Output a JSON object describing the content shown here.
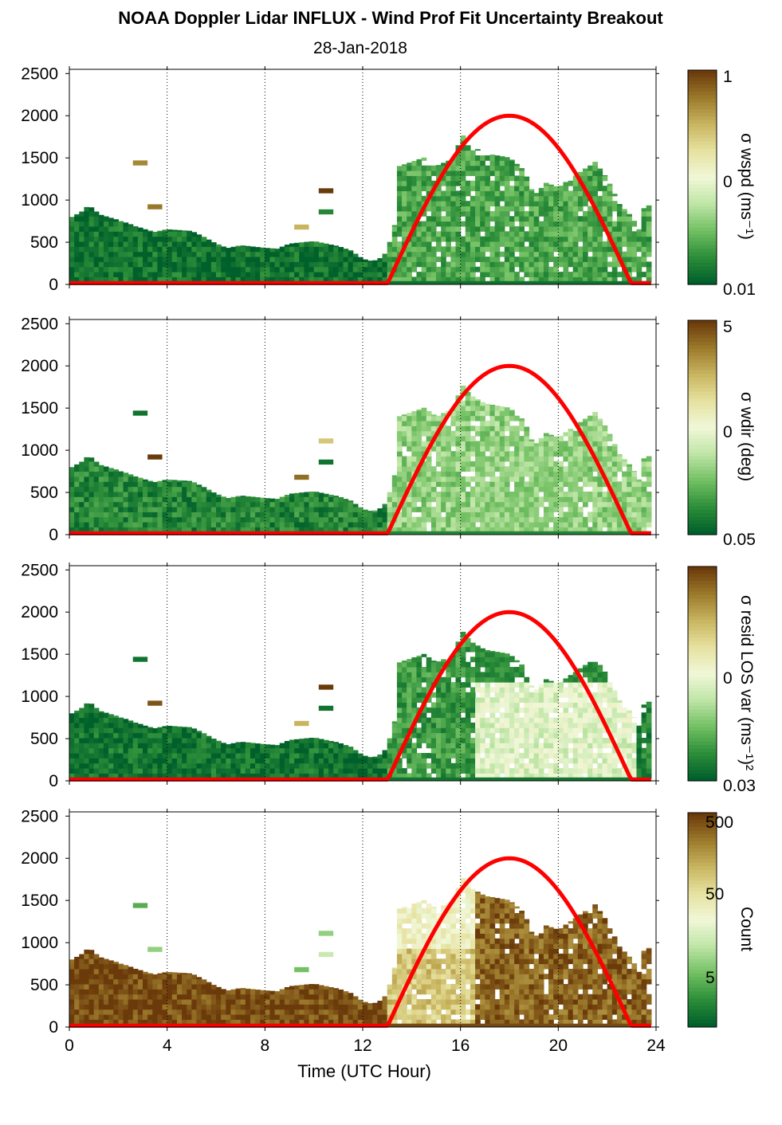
{
  "title": "NOAA Doppler Lidar INFLUX - Wind Prof Fit Uncertainty Breakout",
  "subtitle": "28-Jan-2018",
  "colors": {
    "colormap": [
      "#00602b",
      "#2e8f3a",
      "#74c164",
      "#c0e6a7",
      "#f1f7d8",
      "#e6e2a0",
      "#c9b560",
      "#9c7b2c",
      "#6b3a0a"
    ],
    "sun_curve": "#ff0000",
    "grid": "#000000"
  },
  "chart_data": [
    {
      "type": "heatmap",
      "panel": "wspd",
      "colorbar_label": "σ wspd (ms⁻¹)",
      "colorbar_ticks": [
        "1",
        "0",
        "0.01"
      ],
      "xlim": [
        0,
        24
      ],
      "ylim": [
        0,
        2550
      ],
      "y_ticks": [
        0,
        500,
        1000,
        1500,
        2000,
        2500
      ],
      "x_ticks": [
        0,
        4,
        8,
        12,
        16,
        20,
        24
      ],
      "grid": "vertical dotted",
      "layer_top": [
        [
          0,
          780
        ],
        [
          0.5,
          860
        ],
        [
          0.8,
          940
        ],
        [
          1.0,
          880
        ],
        [
          1.3,
          820
        ],
        [
          2.0,
          760
        ],
        [
          2.6,
          700
        ],
        [
          3.2,
          640
        ],
        [
          3.5,
          620
        ],
        [
          4.0,
          650
        ],
        [
          5.0,
          630
        ],
        [
          5.5,
          560
        ],
        [
          6.0,
          480
        ],
        [
          6.5,
          430
        ],
        [
          7.0,
          460
        ],
        [
          8.0,
          430
        ],
        [
          8.5,
          420
        ],
        [
          9.0,
          480
        ],
        [
          10.0,
          510
        ],
        [
          11.0,
          450
        ],
        [
          11.5,
          400
        ],
        [
          12.0,
          300
        ],
        [
          12.4,
          270
        ],
        [
          12.8,
          320
        ],
        [
          13.0,
          400
        ],
        [
          13.3,
          700
        ],
        [
          13.5,
          1400
        ],
        [
          14.5,
          1500
        ],
        [
          15.0,
          1400
        ],
        [
          15.8,
          1500
        ],
        [
          16.0,
          1800
        ],
        [
          16.4,
          1650
        ],
        [
          17.0,
          1550
        ],
        [
          18.0,
          1500
        ],
        [
          18.6,
          1350
        ],
        [
          19.0,
          1050
        ],
        [
          19.5,
          1200
        ],
        [
          20.0,
          1150
        ],
        [
          21.0,
          1350
        ],
        [
          21.5,
          1450
        ],
        [
          22.0,
          1250
        ],
        [
          22.5,
          950
        ],
        [
          23.0,
          800
        ],
        [
          23.3,
          650
        ],
        [
          23.5,
          900
        ],
        [
          23.8,
          950
        ]
      ],
      "cell_classes": [
        [
          0,
          12.8,
          0.05
        ],
        [
          12.8,
          24,
          0.18
        ]
      ],
      "isolated_cells": [
        [
          2.6,
          1440,
          0.85
        ],
        [
          3.2,
          920,
          0.88
        ],
        [
          10.2,
          1110,
          1.0
        ],
        [
          10.2,
          860,
          0.1
        ],
        [
          9.2,
          680,
          0.75
        ]
      ],
      "sun_elevation_curve": {
        "start": 13,
        "peak": 18,
        "end": 23,
        "max": 2000
      }
    },
    {
      "type": "heatmap",
      "panel": "wdir",
      "colorbar_label": "σ wdir (deg)",
      "colorbar_ticks": [
        "5",
        "0",
        "0.05"
      ],
      "xlim": [
        0,
        24
      ],
      "ylim": [
        0,
        2550
      ],
      "y_ticks": [
        0,
        500,
        1000,
        1500,
        2000,
        2500
      ],
      "x_ticks": [
        0,
        4,
        8,
        12,
        16,
        20,
        24
      ],
      "grid": "vertical dotted",
      "cell_classes": [
        [
          0,
          12.8,
          0.1
        ],
        [
          12.8,
          24,
          0.3
        ]
      ],
      "isolated_cells": [
        [
          2.6,
          1440,
          0.05
        ],
        [
          3.2,
          920,
          1.0
        ],
        [
          10.2,
          1110,
          0.7
        ],
        [
          10.2,
          860,
          0.05
        ],
        [
          9.2,
          680,
          0.9
        ]
      ],
      "sun_elevation_curve": {
        "start": 13,
        "peak": 18,
        "end": 23,
        "max": 2000
      }
    },
    {
      "type": "heatmap",
      "panel": "resid",
      "colorbar_label": "σ resid LOS var (ms⁻¹)²",
      "colorbar_ticks": [
        "0",
        "0.03"
      ],
      "xlim": [
        0,
        24
      ],
      "ylim": [
        0,
        2550
      ],
      "y_ticks": [
        0,
        500,
        1000,
        1500,
        2000,
        2500
      ],
      "x_ticks": [
        0,
        4,
        8,
        12,
        16,
        20,
        24
      ],
      "grid": "vertical dotted",
      "cell_classes": [
        [
          0,
          12.8,
          0.05
        ],
        [
          12.8,
          16.5,
          0.15
        ],
        [
          16.5,
          23,
          0.45
        ]
      ],
      "isolated_cells": [
        [
          2.6,
          1440,
          0.05
        ],
        [
          3.2,
          920,
          0.95
        ],
        [
          10.2,
          1110,
          1.0
        ],
        [
          10.2,
          860,
          0.05
        ],
        [
          9.2,
          680,
          0.75
        ]
      ],
      "sun_elevation_curve": {
        "start": 13,
        "peak": 18,
        "end": 23,
        "max": 2000
      }
    },
    {
      "type": "heatmap",
      "panel": "count",
      "colorbar_label": "Count",
      "colorbar_ticks": [
        "500",
        "50",
        "5"
      ],
      "xlim": [
        0,
        24
      ],
      "ylim": [
        0,
        2550
      ],
      "y_ticks": [
        0,
        500,
        1000,
        1500,
        2000,
        2500
      ],
      "x_ticks": [
        0,
        4,
        8,
        12,
        16,
        20,
        24
      ],
      "xlabel": "Time (UTC Hour)",
      "grid": "vertical dotted",
      "cell_classes": [
        [
          0,
          12.8,
          0.97
        ],
        [
          12.8,
          16.5,
          0.7
        ],
        [
          16.5,
          24,
          0.92
        ]
      ],
      "isolated_cells": [
        [
          2.6,
          1440,
          0.2
        ],
        [
          3.2,
          920,
          0.3
        ],
        [
          10.2,
          1110,
          0.3
        ],
        [
          10.2,
          860,
          0.4
        ],
        [
          9.2,
          680,
          0.25
        ]
      ],
      "sun_elevation_curve": {
        "start": 13,
        "peak": 18,
        "end": 23,
        "max": 2000
      }
    }
  ]
}
